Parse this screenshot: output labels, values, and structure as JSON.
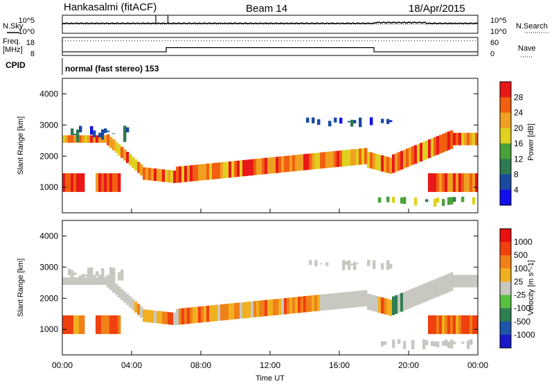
{
  "header": {
    "station": "Hankasalmi (fitACF)",
    "beam": "Beam 14",
    "date": "18/Apr/2015"
  },
  "side_labels": {
    "nsky": "N.Sky",
    "nsearch": "N.Search",
    "freq_line1": "Freq.",
    "freq_line2": "[MHz]",
    "nave": "Nave",
    "cpid": "CPID"
  },
  "cpid_text": "normal (fast stereo) 153",
  "noise_axis": {
    "left_ticks": [
      "10^5",
      "10^0"
    ],
    "right_ticks": [
      "10^5",
      "10^0"
    ]
  },
  "freq_axis": {
    "left_ticks": [
      "18",
      "8"
    ],
    "right_ticks": [
      "60",
      "0"
    ]
  },
  "colors": {
    "power_scale": [
      "#1010ee",
      "#1a4aa0",
      "#2e7a50",
      "#4aa03a",
      "#e0d020",
      "#f0a020",
      "#f06010",
      "#e81818"
    ],
    "velocity_scale": [
      "#1818c8",
      "#1f55a8",
      "#2e7f52",
      "#58c040",
      "#c8c8c0",
      "#f0b020",
      "#f08018",
      "#f04010",
      "#e81010"
    ]
  },
  "chart_data": [
    {
      "type": "line",
      "name": "noise",
      "x_range": [
        0,
        24
      ],
      "series": [
        {
          "name": "N.Sky",
          "style": "solid",
          "level_fraction": 0.55,
          "spikes_at_hours": [
            5.4,
            6.1
          ]
        },
        {
          "name": "N.Search",
          "style": "dotted",
          "level_fraction": 0.55
        }
      ]
    },
    {
      "type": "line",
      "name": "frequency-nave",
      "x_range": [
        0,
        24
      ],
      "series": [
        {
          "name": "Freq.",
          "style": "solid",
          "x": [
            0,
            6.0,
            6.0,
            18.0,
            18.0,
            24
          ],
          "y": [
            10.0,
            10.0,
            12.4,
            12.4,
            10.0,
            10.0
          ]
        },
        {
          "name": "Nave",
          "style": "dotted",
          "level": 49
        }
      ]
    },
    {
      "type": "heatmap",
      "name": "power",
      "xlabel": "",
      "ylabel": "Slant Range [km]",
      "x_range": [
        0,
        24
      ],
      "y_range": [
        180,
        4500
      ],
      "y_ticks": [
        1000,
        2000,
        3000,
        4000
      ],
      "colorbar": {
        "label": "Power [dB]",
        "ticks": [
          4,
          8,
          12,
          16,
          20,
          24,
          28
        ]
      }
    },
    {
      "type": "heatmap",
      "name": "velocity",
      "xlabel": "Time UT",
      "ylabel": "Slant Range [km]",
      "x_range": [
        0,
        24
      ],
      "y_range": [
        180,
        4500
      ],
      "x_ticks": [
        "00:00",
        "04:00",
        "08:00",
        "12:00",
        "16:00",
        "20:00",
        "00:00"
      ],
      "y_ticks": [
        1000,
        2000,
        3000,
        4000
      ],
      "colorbar": {
        "label": "Velocity [m s^-1]",
        "ticks": [
          1000,
          500,
          100,
          25,
          -25,
          -100,
          -500,
          -1000
        ]
      }
    }
  ]
}
